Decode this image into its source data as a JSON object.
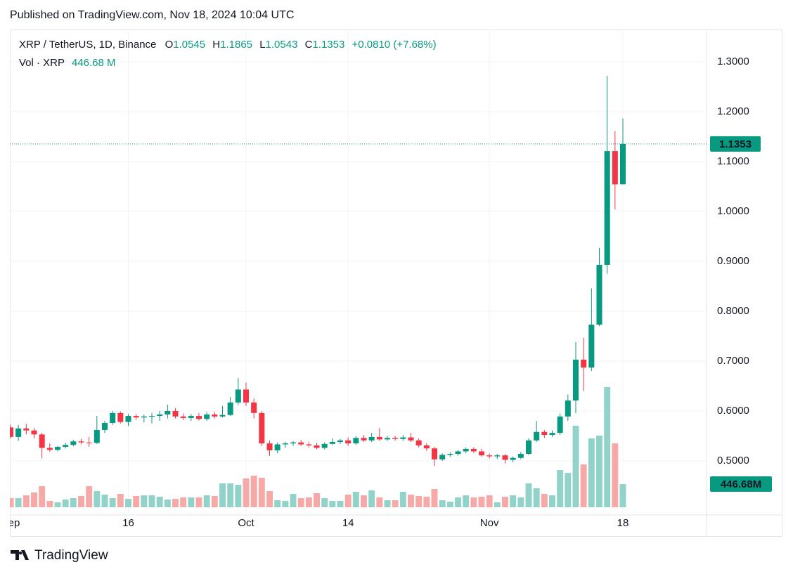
{
  "header": {
    "published": "Published on TradingView.com, Nov 18, 2024 10:04 UTC",
    "brand": "TradingView"
  },
  "chart_data": {
    "type": "candlestick",
    "ohlc_letters": [
      "O",
      "H",
      "L",
      "C"
    ],
    "change": "+0.0810 (+7.68%)",
    "x": [
      "2024-09-01",
      "2024-09-02",
      "2024-09-03",
      "2024-09-04",
      "2024-09-05",
      "2024-09-06",
      "2024-09-07",
      "2024-09-08",
      "2024-09-09",
      "2024-09-10",
      "2024-09-11",
      "2024-09-12",
      "2024-09-13",
      "2024-09-14",
      "2024-09-15",
      "2024-09-16",
      "2024-09-17",
      "2024-09-18",
      "2024-09-19",
      "2024-09-20",
      "2024-09-21",
      "2024-09-22",
      "2024-09-23",
      "2024-09-24",
      "2024-09-25",
      "2024-09-26",
      "2024-09-27",
      "2024-09-28",
      "2024-09-29",
      "2024-09-30",
      "2024-10-01",
      "2024-10-02",
      "2024-10-03",
      "2024-10-04",
      "2024-10-05",
      "2024-10-06",
      "2024-10-07",
      "2024-10-08",
      "2024-10-09",
      "2024-10-10",
      "2024-10-11",
      "2024-10-12",
      "2024-10-13",
      "2024-10-14",
      "2024-10-15",
      "2024-10-16",
      "2024-10-17",
      "2024-10-18",
      "2024-10-19",
      "2024-10-20",
      "2024-10-21",
      "2024-10-22",
      "2024-10-23",
      "2024-10-24",
      "2024-10-25",
      "2024-10-26",
      "2024-10-27",
      "2024-10-28",
      "2024-10-29",
      "2024-10-30",
      "2024-10-31",
      "2024-11-01",
      "2024-11-02",
      "2024-11-03",
      "2024-11-04",
      "2024-11-05",
      "2024-11-06",
      "2024-11-07",
      "2024-11-08",
      "2024-11-09",
      "2024-11-10",
      "2024-11-11",
      "2024-11-12",
      "2024-11-13",
      "2024-11-14",
      "2024-11-15",
      "2024-11-16",
      "2024-11-17",
      "2024-11-18"
    ],
    "series": [
      {
        "name": "XRP / TetherUS, 1D, Binance",
        "up_color": "#089981",
        "down_color": "#f23645",
        "open": [
          0.567,
          0.548,
          0.565,
          0.561,
          0.553,
          0.526,
          0.522,
          0.528,
          0.532,
          0.539,
          0.537,
          0.536,
          0.562,
          0.576,
          0.596,
          0.578,
          0.59,
          0.587,
          0.589,
          0.59,
          0.593,
          0.6,
          0.589,
          0.586,
          0.59,
          0.584,
          0.593,
          0.589,
          0.592,
          0.617,
          0.643,
          0.617,
          0.596,
          0.535,
          0.521,
          0.533,
          0.535,
          0.537,
          0.533,
          0.531,
          0.526,
          0.534,
          0.538,
          0.541,
          0.535,
          0.546,
          0.541,
          0.548,
          0.543,
          0.546,
          0.544,
          0.547,
          0.541,
          0.531,
          0.525,
          0.503,
          0.512,
          0.514,
          0.519,
          0.524,
          0.519,
          0.511,
          0.509,
          0.511,
          0.502,
          0.506,
          0.514,
          0.541,
          0.558,
          0.552,
          0.556,
          0.589,
          0.621,
          0.703,
          0.687,
          0.773,
          0.893,
          1.121,
          1.0545
        ],
        "high": [
          0.572,
          0.572,
          0.574,
          0.566,
          0.556,
          0.535,
          0.53,
          0.536,
          0.542,
          0.544,
          0.548,
          0.59,
          0.58,
          0.6,
          0.599,
          0.594,
          0.594,
          0.593,
          0.596,
          0.6,
          0.613,
          0.606,
          0.595,
          0.594,
          0.596,
          0.598,
          0.598,
          0.61,
          0.628,
          0.666,
          0.657,
          0.625,
          0.6,
          0.541,
          0.537,
          0.538,
          0.54,
          0.542,
          0.538,
          0.536,
          0.537,
          0.545,
          0.544,
          0.547,
          0.55,
          0.552,
          0.556,
          0.566,
          0.55,
          0.55,
          0.552,
          0.556,
          0.545,
          0.535,
          0.528,
          0.515,
          0.517,
          0.522,
          0.527,
          0.527,
          0.524,
          0.515,
          0.514,
          0.514,
          0.509,
          0.518,
          0.545,
          0.58,
          0.562,
          0.561,
          0.595,
          0.633,
          0.738,
          0.747,
          0.846,
          0.927,
          1.272,
          1.161,
          1.1865
        ],
        "low": [
          0.545,
          0.54,
          0.553,
          0.545,
          0.505,
          0.518,
          0.519,
          0.525,
          0.529,
          0.533,
          0.528,
          0.534,
          0.556,
          0.572,
          0.575,
          0.57,
          0.582,
          0.577,
          0.575,
          0.58,
          0.585,
          0.585,
          0.582,
          0.58,
          0.581,
          0.58,
          0.585,
          0.587,
          0.59,
          0.612,
          0.61,
          0.585,
          0.53,
          0.51,
          0.515,
          0.526,
          0.53,
          0.53,
          0.527,
          0.523,
          0.523,
          0.532,
          0.534,
          0.53,
          0.532,
          0.538,
          0.538,
          0.54,
          0.54,
          0.541,
          0.54,
          0.538,
          0.527,
          0.52,
          0.49,
          0.5,
          0.508,
          0.51,
          0.515,
          0.516,
          0.508,
          0.505,
          0.504,
          0.495,
          0.497,
          0.503,
          0.512,
          0.538,
          0.546,
          0.548,
          0.552,
          0.58,
          0.596,
          0.64,
          0.68,
          0.77,
          0.875,
          1.004,
          1.0543
        ],
        "close": [
          0.548,
          0.565,
          0.561,
          0.553,
          0.526,
          0.522,
          0.528,
          0.532,
          0.539,
          0.537,
          0.536,
          0.562,
          0.576,
          0.596,
          0.578,
          0.59,
          0.587,
          0.589,
          0.59,
          0.593,
          0.6,
          0.589,
          0.586,
          0.59,
          0.584,
          0.593,
          0.589,
          0.592,
          0.617,
          0.643,
          0.617,
          0.596,
          0.535,
          0.521,
          0.533,
          0.535,
          0.537,
          0.533,
          0.531,
          0.526,
          0.534,
          0.538,
          0.541,
          0.535,
          0.546,
          0.541,
          0.548,
          0.543,
          0.546,
          0.544,
          0.547,
          0.541,
          0.531,
          0.525,
          0.503,
          0.512,
          0.514,
          0.519,
          0.524,
          0.519,
          0.511,
          0.509,
          0.511,
          0.502,
          0.506,
          0.514,
          0.541,
          0.558,
          0.552,
          0.556,
          0.589,
          0.621,
          0.703,
          0.687,
          0.773,
          0.893,
          1.121,
          1.0543,
          1.1353
        ]
      },
      {
        "name": "Vol · XRP",
        "up_color": "#92d3c9",
        "down_color": "#f7a9a7",
        "last_label": "446.68 M",
        "badge_label": "446.68M",
        "values": [
          176,
          176,
          230,
          284,
          406,
          122,
          95,
          149,
          176,
          217,
          406,
          311,
          244,
          176,
          257,
          162,
          217,
          230,
          230,
          203,
          149,
          162,
          190,
          190,
          190,
          230,
          217,
          460,
          460,
          433,
          555,
          609,
          569,
          311,
          135,
          122,
          257,
          176,
          190,
          271,
          176,
          122,
          122,
          244,
          298,
          230,
          325,
          190,
          135,
          135,
          298,
          244,
          217,
          203,
          352,
          135,
          108,
          190,
          230,
          190,
          203,
          230,
          95,
          203,
          230,
          190,
          460,
          366,
          257,
          230,
          718,
          663,
          1571,
          826,
          1327,
          1381,
          2315,
          1232,
          446.68
        ]
      }
    ],
    "ylim": [
      0.3915,
      1.3648
    ],
    "yticks": [
      {
        "value": 0.5,
        "label": "0.5000"
      },
      {
        "value": 0.6,
        "label": "0.6000"
      },
      {
        "value": 0.7,
        "label": "0.7000"
      },
      {
        "value": 0.8,
        "label": "0.8000"
      },
      {
        "value": 0.9,
        "label": "0.9000"
      },
      {
        "value": 1.0,
        "label": "1.0000"
      },
      {
        "value": 1.1,
        "label": "1.1000"
      },
      {
        "value": 1.2,
        "label": "1.2000"
      },
      {
        "value": 1.3,
        "label": "1.3000"
      }
    ],
    "xticks": [
      {
        "value": "2024-09-01",
        "label": "Sep"
      },
      {
        "value": "2024-09-16",
        "label": "16"
      },
      {
        "value": "2024-10-01",
        "label": "Oct"
      },
      {
        "value": "2024-10-14",
        "label": "14"
      },
      {
        "value": "2024-11-01",
        "label": "Nov"
      },
      {
        "value": "2024-11-18",
        "label": "18"
      }
    ],
    "grid": true
  }
}
